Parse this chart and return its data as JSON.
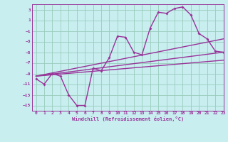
{
  "xlabel": "Windchill (Refroidissement éolien,°C)",
  "xlim": [
    -0.5,
    23
  ],
  "ylim": [
    -16,
    4
  ],
  "xticks": [
    0,
    1,
    2,
    3,
    4,
    5,
    6,
    7,
    8,
    9,
    10,
    11,
    12,
    13,
    14,
    15,
    16,
    17,
    18,
    19,
    20,
    21,
    22,
    23
  ],
  "yticks": [
    3,
    1,
    -1,
    -3,
    -5,
    -7,
    -9,
    -11,
    -13,
    -15
  ],
  "background_color": "#c8eef0",
  "grid_color": "#99ccbb",
  "line_color": "#993399",
  "line1_x": [
    0,
    1,
    2,
    3,
    4,
    5,
    6,
    7,
    8,
    9,
    10,
    11,
    12,
    13,
    14,
    15,
    16,
    17,
    18,
    19,
    20,
    21,
    22,
    23
  ],
  "line1_y": [
    -10,
    -11,
    -9,
    -9.5,
    -13,
    -15,
    -15,
    -8,
    -8.5,
    -6,
    -2,
    -2.2,
    -5,
    -5.5,
    -0.5,
    2.5,
    2.3,
    3.2,
    3.5,
    2,
    -1.5,
    -2.5,
    -4.8,
    -5
  ],
  "line2_x": [
    0,
    23
  ],
  "line2_y": [
    -9.5,
    -5.0
  ],
  "line3_x": [
    0,
    23
  ],
  "line3_y": [
    -9.5,
    -2.5
  ],
  "line4_x": [
    0,
    23
  ],
  "line4_y": [
    -9.5,
    -6.5
  ]
}
